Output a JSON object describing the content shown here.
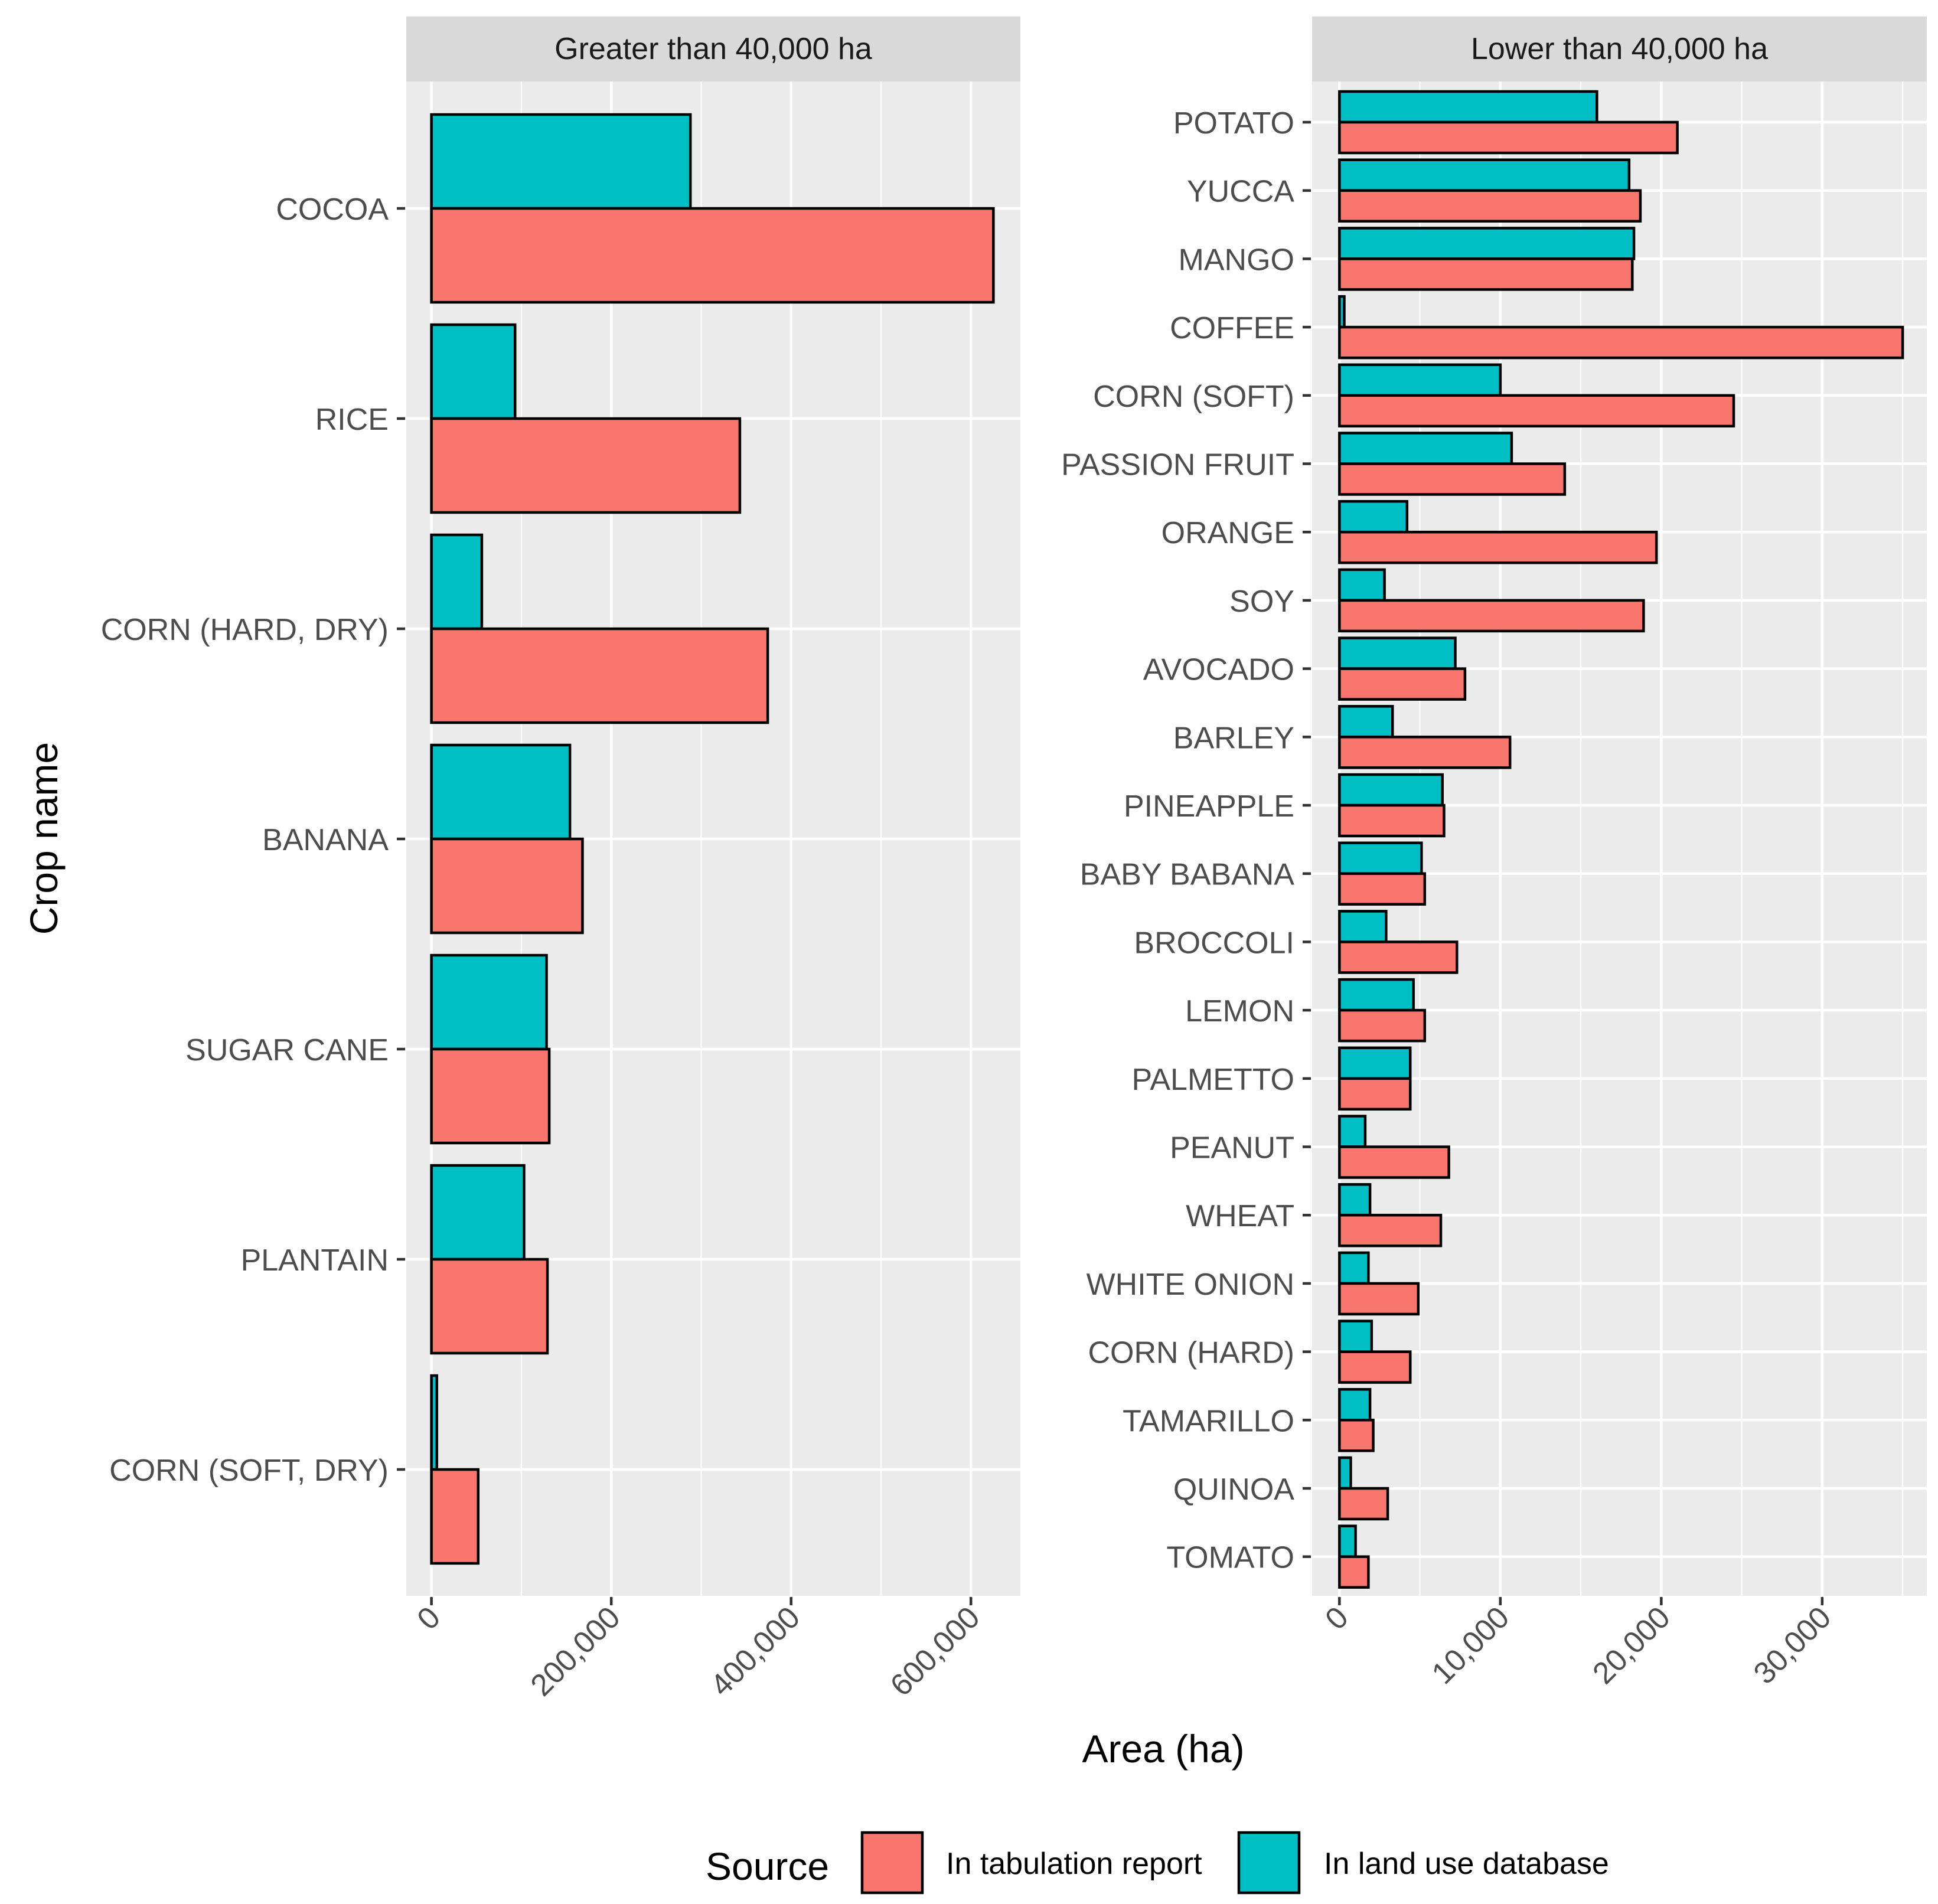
{
  "chart_data": {
    "type": "bar",
    "orientation": "horizontal",
    "xlabel": "Area (ha)",
    "ylabel": "Crop name",
    "legend": {
      "title": "Source",
      "position": "bottom",
      "entries": [
        {
          "name": "In tabulation report",
          "color": "#F8766D"
        },
        {
          "name": "In land use database",
          "color": "#00BFC4"
        }
      ]
    },
    "panels": [
      {
        "title": "Greater than 40,000 ha",
        "xlim": [
          -28000,
          655000
        ],
        "ticks": [
          0,
          200000,
          400000,
          600000
        ],
        "tick_labels": [
          "0",
          "200,000",
          "400,000",
          "600,000"
        ],
        "minor_ticks": [
          100000,
          300000,
          500000
        ],
        "categories": [
          "COCOA",
          "RICE",
          "CORN (HARD, DRY)",
          "BANANA",
          "SUGAR CANE",
          "PLANTAIN",
          "CORN (SOFT, DRY)"
        ],
        "series": [
          {
            "name": "In tabulation report",
            "values": [
              625000,
              343000,
              374000,
              168000,
              131000,
              129000,
              52000
            ]
          },
          {
            "name": "In land use database",
            "values": [
              288000,
              93000,
              56000,
              154000,
              128000,
              103000,
              6000
            ]
          }
        ]
      },
      {
        "title": "Lower than 40,000 ha",
        "xlim": [
          -1700,
          36500
        ],
        "ticks": [
          0,
          10000,
          20000,
          30000
        ],
        "tick_labels": [
          "0",
          "10,000",
          "20,000",
          "30,000"
        ],
        "minor_ticks": [
          5000,
          15000,
          25000,
          35000
        ],
        "categories": [
          "POTATO",
          "YUCCA",
          "MANGO",
          "COFFEE",
          "CORN (SOFT)",
          "PASSION FRUIT",
          "ORANGE",
          "SOY",
          "AVOCADO",
          "BARLEY",
          "PINEAPPLE",
          "BABY BABANA",
          "BROCCOLI",
          "LEMON",
          "PALMETTO",
          "PEANUT",
          "WHEAT",
          "WHITE ONION",
          "CORN (HARD)",
          "TAMARILLO",
          "QUINOA",
          "TOMATO"
        ],
        "series": [
          {
            "name": "In tabulation report",
            "values": [
              21000,
              18700,
              18200,
              35000,
              24500,
              14000,
              19700,
              18900,
              7800,
              10600,
              6500,
              5300,
              7300,
              5300,
              4400,
              6800,
              6300,
              4900,
              4400,
              2100,
              3000,
              1800
            ]
          },
          {
            "name": "In land use database",
            "values": [
              16000,
              18000,
              18300,
              300,
              10000,
              10700,
              4200,
              2800,
              7200,
              3300,
              6400,
              5100,
              2900,
              4600,
              4400,
              1600,
              1900,
              1800,
              2000,
              1900,
              700,
              1000
            ]
          }
        ]
      }
    ]
  }
}
